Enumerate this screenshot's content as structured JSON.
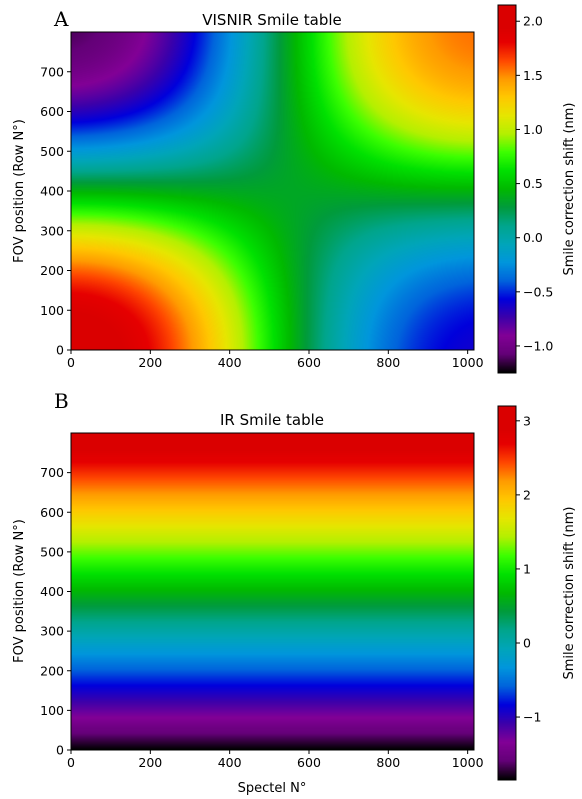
{
  "chart_data": [
    {
      "type": "heatmap",
      "panel_label": "A",
      "title": "VISNIR Smile table",
      "xlabel": "",
      "ylabel": "FOV position (Row N°)",
      "xlim": [
        0,
        1016
      ],
      "ylim": [
        0,
        800
      ],
      "xticks": [
        0,
        200,
        400,
        600,
        800,
        1000
      ],
      "yticks": [
        0,
        100,
        200,
        300,
        400,
        500,
        600,
        700
      ],
      "colorbar": {
        "label": "Smile correction shift (nm)",
        "range": [
          -1.25,
          2.15
        ],
        "ticks": [
          -1.0,
          -0.5,
          0.0,
          0.5,
          1.0,
          1.5,
          2.0
        ],
        "tick_labels": [
          "−1.0",
          "−0.5",
          "0.0",
          "0.5",
          "1.0",
          "1.5",
          "2.0"
        ]
      },
      "colormap": "nipy_spectral",
      "corner_values": {
        "bottom_left": 2.1,
        "top_left": -1.2,
        "top_right": 1.6,
        "bottom_right": -0.7
      },
      "center_value": 0.1
    },
    {
      "type": "heatmap",
      "panel_label": "B",
      "title": "IR Smile table",
      "xlabel": "Spectel N°",
      "ylabel": "FOV position (Row N°)",
      "xlim": [
        0,
        1016
      ],
      "ylim": [
        0,
        800
      ],
      "xticks": [
        0,
        200,
        400,
        600,
        800,
        1000
      ],
      "yticks": [
        0,
        100,
        200,
        300,
        400,
        500,
        600,
        700
      ],
      "colorbar": {
        "label": "Smile correction shift (nm)",
        "range": [
          -1.85,
          3.2
        ],
        "ticks": [
          -1,
          0,
          1,
          2,
          3
        ],
        "tick_labels": [
          "−1",
          "0",
          "1",
          "2",
          "3"
        ]
      },
      "colormap": "nipy_spectral",
      "row_profile": {
        "rows": [
          0,
          800
        ],
        "values": [
          -1.85,
          3.15
        ]
      }
    }
  ]
}
